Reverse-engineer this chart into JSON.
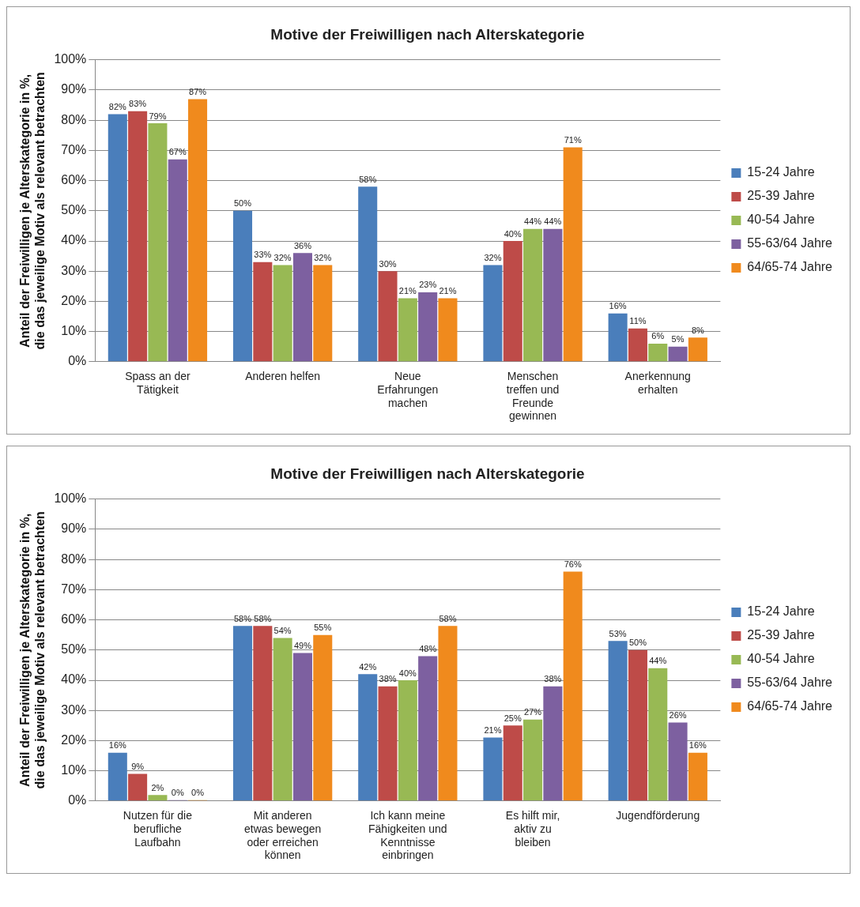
{
  "chart_data": [
    {
      "type": "bar",
      "title": "Motive der Freiwilligen nach Alterskategorie",
      "ylabel": "Anteil der Freiwilligen je Alterskategorie in %, die das jeweilige Motiv als relevant betrachten",
      "categories": [
        "Spass an der Tätigkeit",
        "Anderen helfen",
        "Neue Erfahrungen machen",
        "Menschen treffen und Freunde gewinnen",
        "Anerkennung erhalten"
      ],
      "series": [
        {
          "name": "15-24 Jahre",
          "color": "#4a7ebb",
          "values": [
            82,
            50,
            58,
            32,
            16
          ],
          "value_labels": [
            "82%",
            "50%",
            "58%",
            "32%",
            "16%"
          ]
        },
        {
          "name": "25-39 Jahre",
          "color": "#be4b48",
          "values": [
            83,
            33,
            30,
            40,
            11
          ],
          "value_labels": [
            "83%",
            "33%",
            "30%",
            "40%",
            "11%"
          ]
        },
        {
          "name": "40-54 Jahre",
          "color": "#98b954",
          "values": [
            79,
            32,
            21,
            44,
            6
          ],
          "value_labels": [
            "79%",
            "32%",
            "21%",
            "44%",
            "6%"
          ]
        },
        {
          "name": "55-63/64 Jahre",
          "color": "#7d60a0",
          "values": [
            67,
            36,
            23,
            44,
            5
          ],
          "value_labels": [
            "67%",
            "36%",
            "23%",
            "44%",
            "5%"
          ]
        },
        {
          "name": "64/65-74 Jahre",
          "color": "#f08a1d",
          "values": [
            87,
            32,
            21,
            71,
            8
          ],
          "value_labels": [
            "87%",
            "32%",
            "21%",
            "71%",
            "8%"
          ]
        }
      ],
      "ylim": [
        0,
        100
      ],
      "yticks": [
        {
          "value": 0,
          "label": "0%"
        },
        {
          "value": 10,
          "label": "10%"
        },
        {
          "value": 20,
          "label": "20%"
        },
        {
          "value": 30,
          "label": "30%"
        },
        {
          "value": 40,
          "label": "40%"
        },
        {
          "value": 50,
          "label": "50%"
        },
        {
          "value": 60,
          "label": "60%"
        },
        {
          "value": 70,
          "label": "70%"
        },
        {
          "value": 80,
          "label": "80%"
        },
        {
          "value": 90,
          "label": "90%"
        },
        {
          "value": 100,
          "label": "100%"
        }
      ],
      "grid": "y",
      "legend": "right"
    },
    {
      "type": "bar",
      "title": "Motive der Freiwilligen nach Alterskategorie",
      "ylabel": "Anteil der Freiwilligen je Alterskategorie in %, die das jeweilige Motiv als relevant betrachten",
      "categories": [
        "Nutzen für die berufliche Laufbahn",
        "Mit anderen etwas bewegen oder erreichen können",
        "Ich kann meine Fähigkeiten und Kenntnisse einbringen",
        "Es hilft mir, aktiv zu bleiben",
        "Jugendförderung"
      ],
      "series": [
        {
          "name": "15-24 Jahre",
          "color": "#4a7ebb",
          "values": [
            16,
            58,
            42,
            21,
            53
          ],
          "value_labels": [
            "16%",
            "58%",
            "42%",
            "21%",
            "53%"
          ]
        },
        {
          "name": "25-39 Jahre",
          "color": "#be4b48",
          "values": [
            9,
            58,
            38,
            25,
            50
          ],
          "value_labels": [
            "9%",
            "58%",
            "38%",
            "25%",
            "50%"
          ]
        },
        {
          "name": "40-54 Jahre",
          "color": "#98b954",
          "values": [
            2,
            54,
            40,
            27,
            44
          ],
          "value_labels": [
            "2%",
            "54%",
            "40%",
            "27%",
            "44%"
          ]
        },
        {
          "name": "55-63/64 Jahre",
          "color": "#7d60a0",
          "values": [
            0,
            49,
            48,
            38,
            26
          ],
          "value_labels": [
            "0%",
            "49%",
            "48%",
            "38%",
            "26%"
          ]
        },
        {
          "name": "64/65-74 Jahre",
          "color": "#f08a1d",
          "values": [
            0,
            55,
            58,
            76,
            16
          ],
          "value_labels": [
            "0%",
            "55%",
            "58%",
            "76%",
            "16%"
          ]
        }
      ],
      "ylim": [
        0,
        100
      ],
      "yticks": [
        {
          "value": 0,
          "label": "0%"
        },
        {
          "value": 10,
          "label": "10%"
        },
        {
          "value": 20,
          "label": "20%"
        },
        {
          "value": 30,
          "label": "30%"
        },
        {
          "value": 40,
          "label": "40%"
        },
        {
          "value": 50,
          "label": "50%"
        },
        {
          "value": 60,
          "label": "60%"
        },
        {
          "value": 70,
          "label": "70%"
        },
        {
          "value": 80,
          "label": "80%"
        },
        {
          "value": 90,
          "label": "90%"
        },
        {
          "value": 100,
          "label": "100%"
        }
      ],
      "grid": "y",
      "legend": "right"
    }
  ]
}
